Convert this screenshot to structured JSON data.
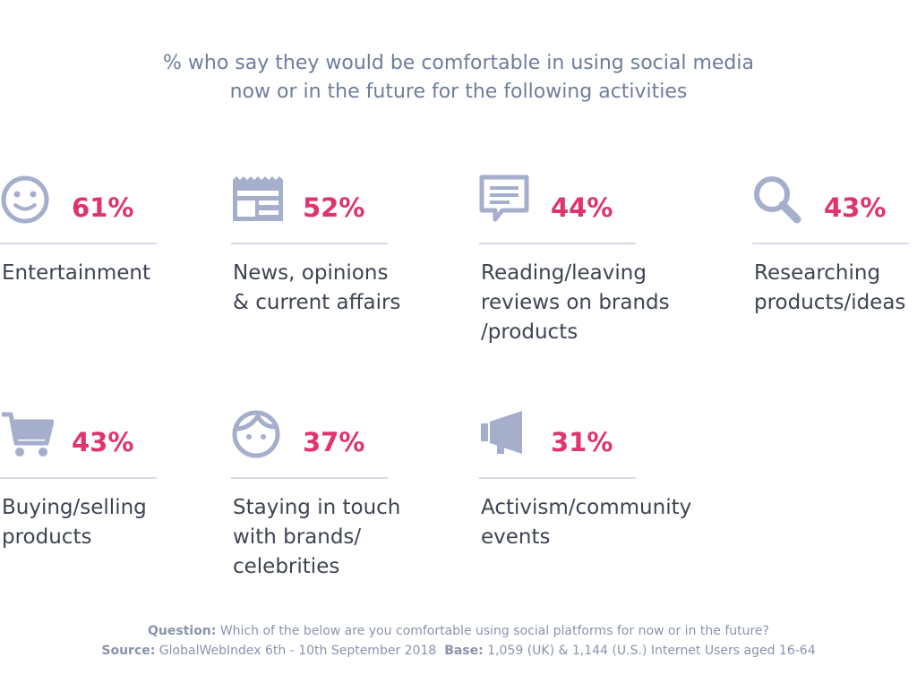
{
  "title": [
    "% who say they would be comfortable in using social media",
    "now or in the future for the following activities"
  ],
  "items": [
    {
      "value": "61%",
      "label": [
        "Entertainment"
      ]
    },
    {
      "value": "52%",
      "label": [
        "News, opinions",
        "& current affairs"
      ]
    },
    {
      "value": "44%",
      "label": [
        "Reading/leaving",
        "reviews on brands",
        "/products"
      ]
    },
    {
      "value": "43%",
      "label": [
        "Researching",
        "products/ideas"
      ]
    },
    {
      "value": "43%",
      "label": [
        "Buying/selling",
        "products"
      ]
    },
    {
      "value": "37%",
      "label": [
        "Staying in touch",
        "with brands/",
        "celebrities"
      ]
    },
    {
      "value": "31%",
      "label": [
        "Activism/community",
        "events"
      ]
    }
  ],
  "footer": {
    "question_label": "Question:",
    "question": "Which of the below are you comfortable using social platforms for now or in the future?",
    "source_label": "Source:",
    "source": "GlobalWebIndex 6th - 10th September 2018",
    "base_label": "Base:",
    "base": "1,059 (UK) & 1,144 (U.S.) Internet Users aged 16-64"
  }
}
